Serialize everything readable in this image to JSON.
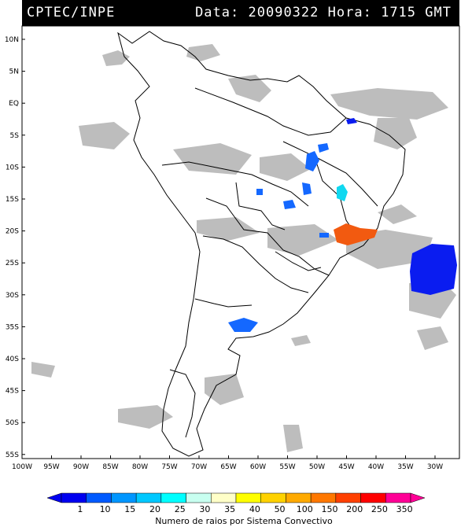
{
  "header": {
    "agency": "CPTEC/INPE",
    "date_label": "Data:",
    "date_value": "20090322",
    "time_label": "Hora:",
    "time_value": "1715",
    "tz": "GMT"
  },
  "map": {
    "lat_labels": [
      "10N",
      "5N",
      "EQ",
      "5S",
      "10S",
      "15S",
      "20S",
      "25S",
      "30S",
      "35S",
      "40S",
      "45S",
      "50S",
      "55S"
    ],
    "lon_labels": [
      "100W",
      "95W",
      "90W",
      "85W",
      "80W",
      "75W",
      "70W",
      "65W",
      "60W",
      "55W",
      "50W",
      "45W",
      "40W",
      "35W",
      "30W"
    ],
    "colors": {
      "land_outline": "#000000",
      "cloud": "#bdbdbd",
      "low_activity": "#0a1cf0",
      "mid_activity": "#1468ff",
      "cyan_activity": "#10d8f0",
      "high_activity": "#f25a10"
    }
  },
  "colorbar": {
    "ticks": [
      "1",
      "10",
      "15",
      "20",
      "25",
      "30",
      "35",
      "40",
      "50",
      "100",
      "150",
      "200",
      "250",
      "350"
    ],
    "colors": [
      "#0000f0",
      "#005aff",
      "#0096ff",
      "#00c8ff",
      "#00ffff",
      "#c8fff0",
      "#ffffc8",
      "#ffff00",
      "#ffd200",
      "#ffaa00",
      "#ff7800",
      "#ff4000",
      "#ff0000",
      "#ff0096"
    ],
    "title": "Numero de raios por Sistema Convectivo"
  }
}
